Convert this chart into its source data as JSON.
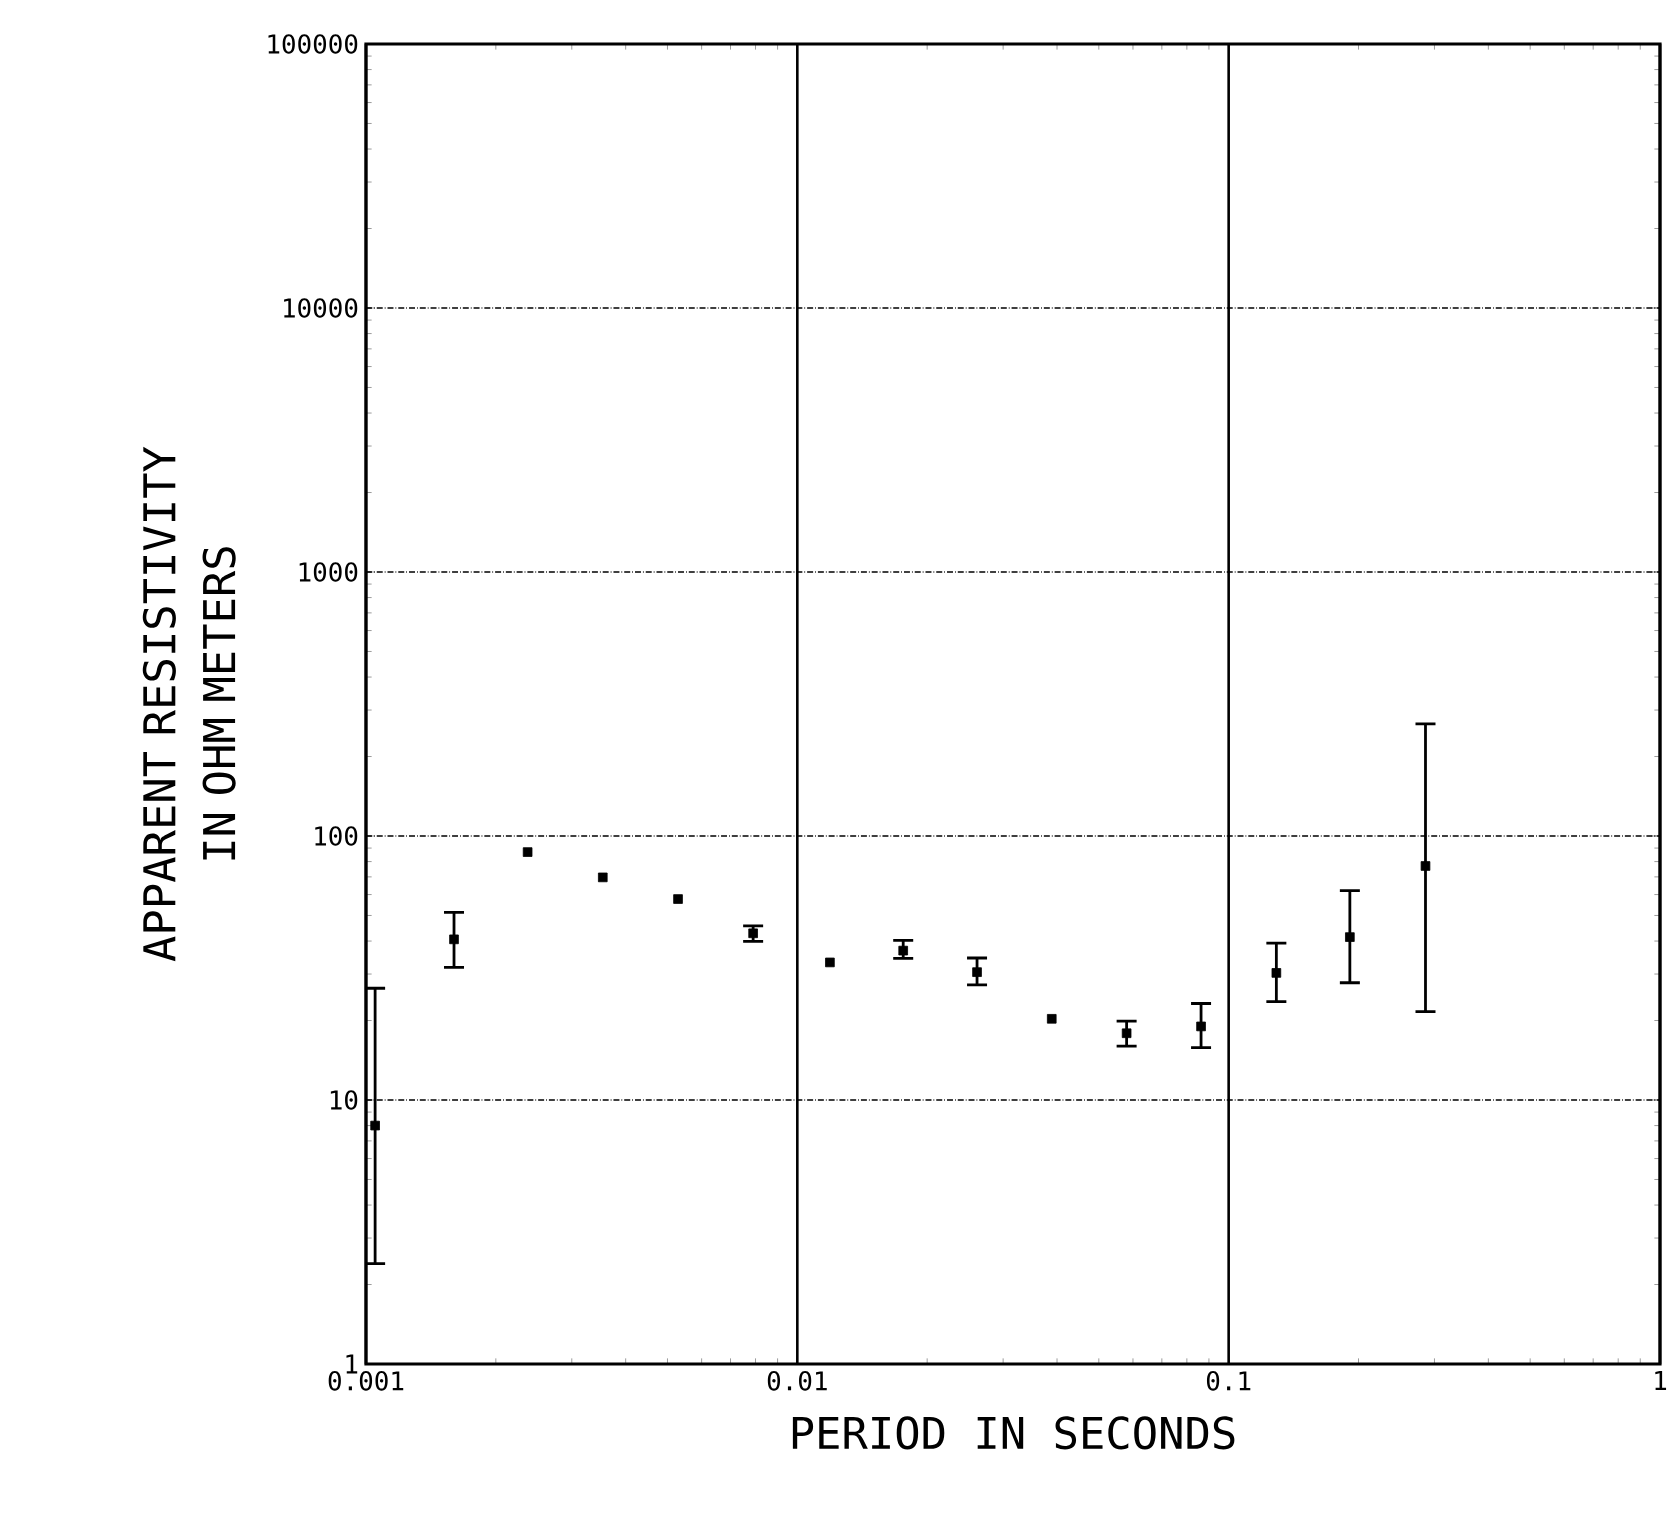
{
  "chart_data": {
    "type": "scatter",
    "xlabel": "PERIOD IN SECONDS",
    "ylabel": "APPARENT RESISTIVITY IN OHM METERS",
    "x": [
      0.00105,
      0.0016,
      0.00237,
      0.00354,
      0.00529,
      0.0079,
      0.0119,
      0.0176,
      0.0261,
      0.0389,
      0.058,
      0.0863,
      0.129,
      0.191,
      0.286
    ],
    "values": [
      8.0,
      40.6,
      86.9,
      69.7,
      57.7,
      42.8,
      33.2,
      36.8,
      30.5,
      20.3,
      17.9,
      19.0,
      30.3,
      41.4,
      77
    ],
    "errors": [
      [
        2.4,
        26.5
      ],
      [
        31.8,
        51.4
      ],
      null,
      null,
      null,
      [
        39.9,
        45.7
      ],
      null,
      [
        34.4,
        40.2
      ],
      [
        27.3,
        34.5
      ],
      null,
      [
        16.0,
        19.9
      ],
      [
        15.8,
        23.2
      ],
      [
        23.6,
        39.3
      ],
      [
        27.8,
        62.1
      ],
      [
        21.6,
        266
      ]
    ],
    "color": "#000000",
    "log": "xy",
    "xlim": [
      0.001,
      1
    ],
    "ylim": [
      1,
      100000
    ],
    "xticks": [
      0.001,
      0.01,
      0.1,
      1
    ],
    "yticks": [
      1,
      10,
      100,
      1000,
      10000,
      100000
    ],
    "grid": true,
    "marker": "square"
  }
}
